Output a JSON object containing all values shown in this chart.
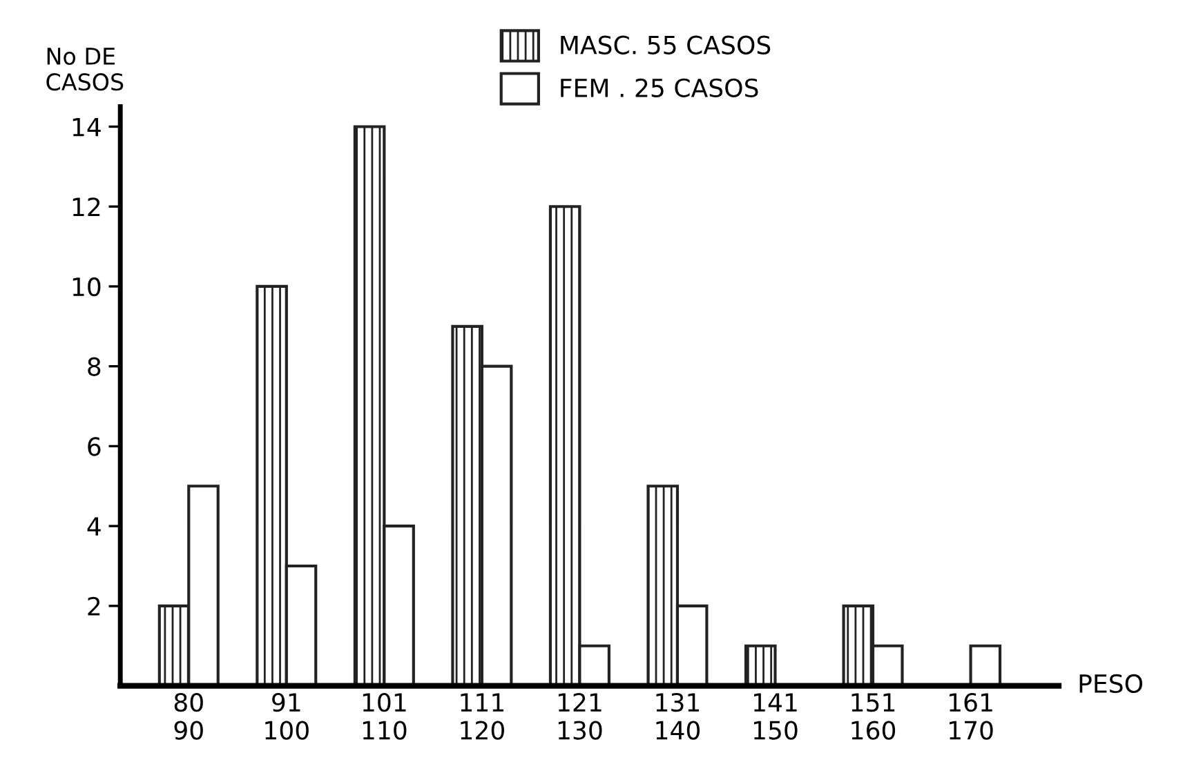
{
  "chart_data": {
    "type": "bar",
    "categories": [
      "80\n90",
      "91\n100",
      "101\n110",
      "111\n120",
      "121\n130",
      "131\n140",
      "141\n150",
      "151\n160",
      "161\n170"
    ],
    "series": [
      {
        "name": "MASC. 55 CASOS",
        "color": "#222222",
        "values": [
          2,
          10,
          14,
          9,
          12,
          5,
          1,
          2,
          0
        ]
      },
      {
        "name": "FEM . 25 CASOS",
        "color": "#222222",
        "values": [
          5,
          3,
          4,
          8,
          1,
          2,
          0,
          1,
          1
        ]
      }
    ],
    "ylabel": "No DE\nCASOS",
    "xlabel": "PESO",
    "ylim": [
      0,
      14.5
    ],
    "yticks": [
      2,
      4,
      6,
      8,
      10,
      12,
      14
    ],
    "legend": "top",
    "grid": false
  }
}
